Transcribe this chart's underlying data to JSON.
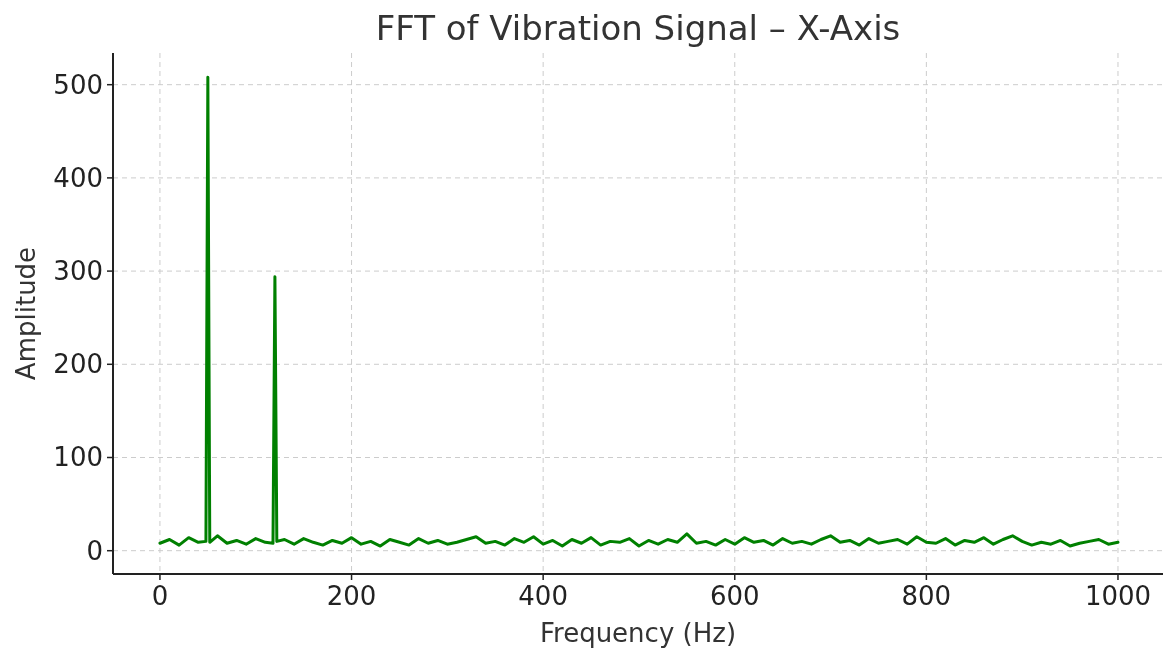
{
  "chart_data": {
    "type": "line",
    "title": "FFT of Vibration Signal – X-Axis",
    "xlabel": "Frequency (Hz)",
    "ylabel": "Amplitude",
    "xlim": [
      -49,
      1047
    ],
    "ylim": [
      -25,
      534
    ],
    "xticks": [
      0,
      200,
      400,
      600,
      800,
      1000
    ],
    "yticks": [
      0,
      100,
      200,
      300,
      400,
      500
    ],
    "grid": true,
    "series": [
      {
        "color": "#008000",
        "x": [
          0,
          10,
          20,
          30,
          40,
          48,
          50,
          52,
          60,
          70,
          80,
          90,
          100,
          110,
          118,
          120,
          122,
          130,
          140,
          150,
          160,
          170,
          180,
          190,
          200,
          210,
          220,
          230,
          240,
          250,
          260,
          270,
          280,
          290,
          300,
          310,
          320,
          330,
          340,
          350,
          360,
          370,
          380,
          390,
          400,
          410,
          420,
          430,
          440,
          450,
          460,
          470,
          480,
          490,
          500,
          510,
          520,
          530,
          540,
          550,
          560,
          570,
          580,
          590,
          600,
          610,
          620,
          630,
          640,
          650,
          660,
          670,
          680,
          690,
          700,
          710,
          720,
          730,
          740,
          750,
          760,
          770,
          780,
          790,
          800,
          810,
          820,
          830,
          840,
          850,
          860,
          870,
          880,
          890,
          900,
          910,
          920,
          930,
          940,
          950,
          960,
          970,
          980,
          990,
          1000
        ],
        "values": [
          8,
          12,
          6,
          14,
          9,
          10,
          508,
          9,
          16,
          8,
          11,
          7,
          13,
          9,
          8,
          294,
          10,
          12,
          7,
          13,
          9,
          6,
          11,
          8,
          14,
          7,
          10,
          5,
          12,
          9,
          6,
          13,
          8,
          11,
          7,
          9,
          12,
          15,
          8,
          10,
          6,
          13,
          9,
          15,
          7,
          11,
          5,
          12,
          8,
          14,
          6,
          10,
          9,
          13,
          5,
          11,
          7,
          12,
          9,
          18,
          8,
          10,
          6,
          12,
          7,
          14,
          9,
          11,
          6,
          13,
          8,
          10,
          7,
          12,
          16,
          9,
          11,
          6,
          13,
          8,
          10,
          12,
          7,
          15,
          9,
          8,
          13,
          6,
          11,
          9,
          14,
          7,
          12,
          16,
          10,
          6,
          9,
          7,
          11,
          5,
          8,
          10,
          12,
          7,
          9
        ]
      }
    ]
  }
}
